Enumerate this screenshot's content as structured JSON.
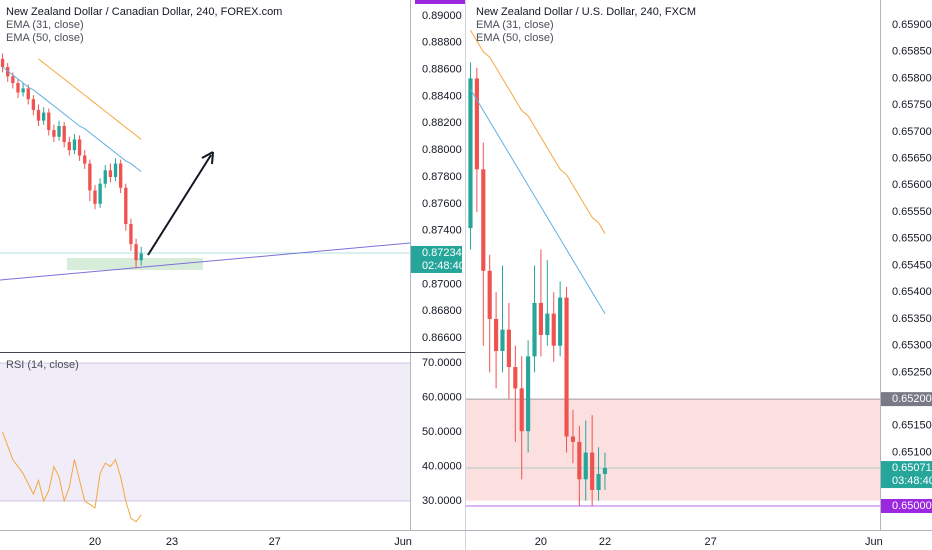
{
  "chart_data": [
    {
      "type": "candlestick",
      "title": "New Zealand Dollar / Canadian Dollar, 240, FOREX.com",
      "up_color": "#26a69a",
      "down_color": "#ef5350",
      "xlim": [
        16.3,
        32.27
      ],
      "ylim": [
        0.86496,
        0.89119
      ],
      "yticks": [
        {
          "value": 0.89,
          "label": "0.89000"
        },
        {
          "value": 0.888,
          "label": "0.88800"
        },
        {
          "value": 0.886,
          "label": "0.88600"
        },
        {
          "value": 0.884,
          "label": "0.88400"
        },
        {
          "value": 0.882,
          "label": "0.88200"
        },
        {
          "value": 0.88,
          "label": "0.88000"
        },
        {
          "value": 0.878,
          "label": "0.87800"
        },
        {
          "value": 0.876,
          "label": "0.87600"
        },
        {
          "value": 0.874,
          "label": "0.87400"
        },
        {
          "value": 0.87,
          "label": "0.87000"
        },
        {
          "value": 0.868,
          "label": "0.86800"
        },
        {
          "value": 0.866,
          "label": "0.86600"
        }
      ],
      "x": [
        16.4,
        16.6,
        16.8,
        17.0,
        17.2,
        17.4,
        17.6,
        17.8,
        18.0,
        18.2,
        18.4,
        18.6,
        18.8,
        19.0,
        19.2,
        19.4,
        19.6,
        19.8,
        20.0,
        20.2,
        20.4,
        20.6,
        20.8,
        21.0,
        21.2,
        21.4,
        21.6,
        21.8
      ],
      "open": [
        0.8868,
        0.8862,
        0.8855,
        0.885,
        0.8843,
        0.8846,
        0.8838,
        0.883,
        0.8822,
        0.8828,
        0.8815,
        0.881,
        0.8818,
        0.8806,
        0.88,
        0.8808,
        0.8796,
        0.879,
        0.877,
        0.876,
        0.8775,
        0.8785,
        0.878,
        0.879,
        0.8772,
        0.8745,
        0.873,
        0.8718
      ],
      "high": [
        0.8872,
        0.8865,
        0.8858,
        0.8853,
        0.885,
        0.8849,
        0.8841,
        0.8834,
        0.8832,
        0.8831,
        0.8819,
        0.8822,
        0.8821,
        0.881,
        0.8812,
        0.8811,
        0.88,
        0.8793,
        0.8774,
        0.8779,
        0.8789,
        0.879,
        0.8794,
        0.8793,
        0.8775,
        0.8749,
        0.8734,
        0.8728
      ],
      "low": [
        0.8858,
        0.8851,
        0.8846,
        0.8839,
        0.884,
        0.8834,
        0.8826,
        0.8818,
        0.8819,
        0.8811,
        0.8806,
        0.8807,
        0.8802,
        0.8796,
        0.8797,
        0.8792,
        0.8786,
        0.8762,
        0.8756,
        0.8757,
        0.8772,
        0.8776,
        0.8777,
        0.8768,
        0.874,
        0.8725,
        0.8712,
        0.8714
      ],
      "close": [
        0.8862,
        0.8855,
        0.885,
        0.8843,
        0.8846,
        0.8838,
        0.883,
        0.8822,
        0.8828,
        0.8815,
        0.881,
        0.8818,
        0.8806,
        0.88,
        0.8808,
        0.8796,
        0.879,
        0.877,
        0.876,
        0.8775,
        0.8785,
        0.878,
        0.879,
        0.8772,
        0.8745,
        0.873,
        0.8718,
        0.8723
      ],
      "series": [
        {
          "name": "EMA (31, close)",
          "color": "#5fb0e0",
          "values": [
            0.8862,
            0.8859,
            0.8856,
            0.8853,
            0.885,
            0.8847,
            0.8845,
            0.8842,
            0.8839,
            0.8836,
            0.8833,
            0.883,
            0.8827,
            0.8824,
            0.8821,
            0.8818,
            0.8816,
            0.8813,
            0.881,
            0.8807,
            0.8804,
            0.8801,
            0.8798,
            0.8795,
            0.8792,
            0.879,
            0.8787,
            0.8784
          ]
        },
        {
          "name": "EMA (50, close)",
          "color": "#f5a742",
          "values": [
            null,
            null,
            null,
            null,
            null,
            null,
            null,
            0.8868,
            0.8865,
            0.8862,
            0.8859,
            0.8856,
            0.8853,
            0.885,
            0.8847,
            0.8844,
            0.8841,
            0.8838,
            0.8835,
            0.8832,
            0.8829,
            0.8826,
            0.8823,
            0.882,
            0.8817,
            0.8814,
            0.8811,
            0.8808
          ]
        }
      ],
      "last_price": 0.87234,
      "countdown": "02:48:40"
    },
    {
      "type": "line",
      "xlim": [
        16.3,
        32.27
      ],
      "ylim": [
        21.6,
        72.9
      ],
      "xticks": [
        20,
        23,
        27,
        {
          "value": 32,
          "label": "Jun"
        }
      ],
      "yticks": [
        {
          "value": 70,
          "label": "70.0000"
        },
        {
          "value": 60,
          "label": "60.0000"
        },
        {
          "value": 50,
          "label": "50.0000"
        },
        {
          "value": 40,
          "label": "40.0000"
        },
        {
          "value": 30,
          "label": "30.0000"
        }
      ],
      "band": [
        30,
        70
      ],
      "band_color": "#9575cd",
      "x": [
        16.4,
        16.6,
        16.8,
        17.0,
        17.2,
        17.4,
        17.6,
        17.8,
        18.0,
        18.2,
        18.4,
        18.6,
        18.8,
        19.0,
        19.2,
        19.4,
        19.6,
        19.8,
        20.0,
        20.2,
        20.4,
        20.6,
        20.8,
        21.0,
        21.2,
        21.4,
        21.6,
        21.8
      ],
      "series": [
        {
          "name": "RSI (14, close)",
          "color": "#f5a742",
          "values": [
            50,
            46,
            42,
            40,
            38,
            35,
            32,
            36,
            30,
            33,
            40,
            37,
            30,
            34,
            42,
            36,
            30,
            29,
            28,
            38,
            41,
            40,
            42,
            37,
            30,
            25,
            24,
            26
          ]
        }
      ]
    },
    {
      "type": "candlestick",
      "title": "New Zealand Dollar / U.S. Dollar, 240, FXCM",
      "up_color": "#26a69a",
      "down_color": "#ef5350",
      "xlim": [
        17.66,
        30.59
      ],
      "ylim": [
        0.649551,
        0.659468
      ],
      "xticks": [
        20,
        22,
        {
          "value": 25.3,
          "label": "27"
        },
        {
          "value": 30.4,
          "label": "Jun"
        }
      ],
      "yticks": [
        {
          "value": 0.659,
          "label": "0.65900"
        },
        {
          "value": 0.6585,
          "label": "0.65850"
        },
        {
          "value": 0.658,
          "label": "0.65800"
        },
        {
          "value": 0.6575,
          "label": "0.65750"
        },
        {
          "value": 0.657,
          "label": "0.65700"
        },
        {
          "value": 0.6565,
          "label": "0.65650"
        },
        {
          "value": 0.656,
          "label": "0.65600"
        },
        {
          "value": 0.6555,
          "label": "0.65550"
        },
        {
          "value": 0.655,
          "label": "0.65500"
        },
        {
          "value": 0.6545,
          "label": "0.65450"
        },
        {
          "value": 0.654,
          "label": "0.65400"
        },
        {
          "value": 0.6535,
          "label": "0.65350"
        },
        {
          "value": 0.653,
          "label": "0.65300"
        },
        {
          "value": 0.6525,
          "label": "0.65250"
        },
        {
          "value": 0.6515,
          "label": "0.65150"
        },
        {
          "value": 0.651,
          "label": "0.65100"
        }
      ],
      "x": [
        17.8,
        18.0,
        18.2,
        18.4,
        18.6,
        18.8,
        19.0,
        19.2,
        19.4,
        19.6,
        19.8,
        20.0,
        20.2,
        20.4,
        20.6,
        20.8,
        21.0,
        21.2,
        21.4,
        21.6,
        21.8,
        22.0
      ],
      "open": [
        0.6552,
        0.658,
        0.6563,
        0.6544,
        0.6535,
        0.6529,
        0.6533,
        0.6526,
        0.6522,
        0.6514,
        0.6528,
        0.6538,
        0.6532,
        0.6536,
        0.653,
        0.6539,
        0.6513,
        0.6512,
        0.6505,
        0.651,
        0.6503,
        0.6506
      ],
      "high": [
        0.6583,
        0.6582,
        0.6568,
        0.6547,
        0.654,
        0.6545,
        0.6538,
        0.653,
        0.6528,
        0.6531,
        0.6545,
        0.6548,
        0.6546,
        0.654,
        0.6542,
        0.6541,
        0.6518,
        0.6515,
        0.6516,
        0.6517,
        0.6511,
        0.651
      ],
      "low": [
        0.6548,
        0.6555,
        0.653,
        0.6525,
        0.6522,
        0.6525,
        0.652,
        0.6512,
        0.6505,
        0.651,
        0.6525,
        0.6528,
        0.653,
        0.6527,
        0.6528,
        0.651,
        0.6508,
        0.65,
        0.6501,
        0.65,
        0.6501,
        0.6503
      ],
      "close": [
        0.658,
        0.6563,
        0.6544,
        0.6535,
        0.6529,
        0.6533,
        0.6526,
        0.6522,
        0.6514,
        0.6528,
        0.6538,
        0.6532,
        0.6536,
        0.653,
        0.6539,
        0.6513,
        0.6512,
        0.6505,
        0.651,
        0.6503,
        0.6506,
        0.65071
      ],
      "series": [
        {
          "name": "EMA (31, close)",
          "color": "#5fb0e0",
          "values": [
            0.6578,
            0.6576,
            0.6574,
            0.6572,
            0.657,
            0.6568,
            0.6566,
            0.6564,
            0.6562,
            0.656,
            0.6558,
            0.6556,
            0.6554,
            0.6552,
            0.655,
            0.6548,
            0.6546,
            0.6544,
            0.6542,
            0.654,
            0.6538,
            0.6536
          ]
        },
        {
          "name": "EMA (50, close)",
          "color": "#f5a742",
          "values": [
            0.6589,
            0.6587,
            0.6585,
            0.6584,
            0.6582,
            0.658,
            0.6578,
            0.6576,
            0.6574,
            0.6573,
            0.6571,
            0.6569,
            0.6567,
            0.6565,
            0.6563,
            0.6562,
            0.656,
            0.6558,
            0.6556,
            0.6554,
            0.6553,
            0.6551
          ]
        }
      ],
      "zone": [
        0.6501,
        0.652
      ],
      "zone_color": "#ef5350",
      "levels": [
        {
          "value": 0.652,
          "label": "0.65200",
          "color": "#787b86"
        },
        {
          "value": 0.65,
          "label": "0.65000",
          "color": "#9c27e0"
        }
      ],
      "last_price": 0.65071,
      "countdown": "03:48:40"
    }
  ]
}
